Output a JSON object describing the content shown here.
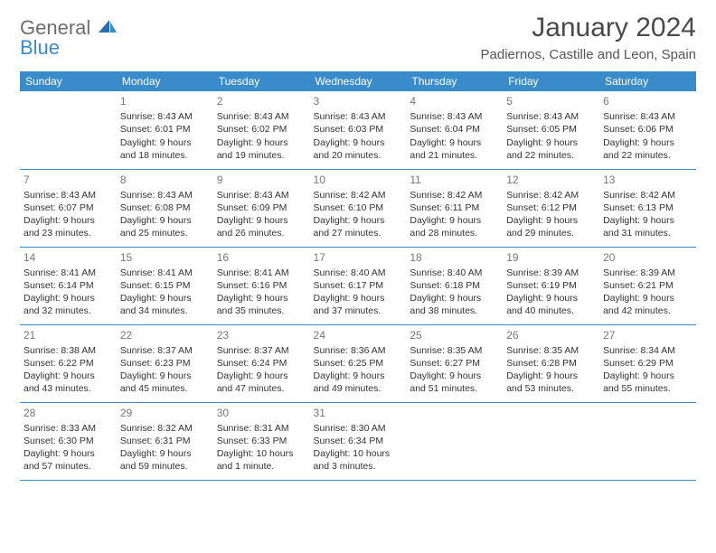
{
  "brand": {
    "general": "General",
    "blue": "Blue"
  },
  "title": "January 2024",
  "location": "Padiernos, Castille and Leon, Spain",
  "colors": {
    "header_bg": "#3a8bc9",
    "header_fg": "#ffffff",
    "rule": "#3a8bc9",
    "text": "#333333",
    "daynum": "#777777",
    "brand_gray": "#6e6e6e",
    "brand_blue": "#3a8bc9",
    "page_bg": "#ffffff"
  },
  "typography": {
    "title_fontsize": 30,
    "location_fontsize": 15,
    "header_fontsize": 12,
    "cell_fontsize": 10.5
  },
  "type": "calendar-table",
  "day_headers": [
    "Sunday",
    "Monday",
    "Tuesday",
    "Wednesday",
    "Thursday",
    "Friday",
    "Saturday"
  ],
  "weeks": [
    [
      null,
      {
        "n": "1",
        "sr": "Sunrise: 8:43 AM",
        "ss": "Sunset: 6:01 PM",
        "dl": "Daylight: 9 hours and 18 minutes."
      },
      {
        "n": "2",
        "sr": "Sunrise: 8:43 AM",
        "ss": "Sunset: 6:02 PM",
        "dl": "Daylight: 9 hours and 19 minutes."
      },
      {
        "n": "3",
        "sr": "Sunrise: 8:43 AM",
        "ss": "Sunset: 6:03 PM",
        "dl": "Daylight: 9 hours and 20 minutes."
      },
      {
        "n": "4",
        "sr": "Sunrise: 8:43 AM",
        "ss": "Sunset: 6:04 PM",
        "dl": "Daylight: 9 hours and 21 minutes."
      },
      {
        "n": "5",
        "sr": "Sunrise: 8:43 AM",
        "ss": "Sunset: 6:05 PM",
        "dl": "Daylight: 9 hours and 22 minutes."
      },
      {
        "n": "6",
        "sr": "Sunrise: 8:43 AM",
        "ss": "Sunset: 6:06 PM",
        "dl": "Daylight: 9 hours and 22 minutes."
      }
    ],
    [
      {
        "n": "7",
        "sr": "Sunrise: 8:43 AM",
        "ss": "Sunset: 6:07 PM",
        "dl": "Daylight: 9 hours and 23 minutes."
      },
      {
        "n": "8",
        "sr": "Sunrise: 8:43 AM",
        "ss": "Sunset: 6:08 PM",
        "dl": "Daylight: 9 hours and 25 minutes."
      },
      {
        "n": "9",
        "sr": "Sunrise: 8:43 AM",
        "ss": "Sunset: 6:09 PM",
        "dl": "Daylight: 9 hours and 26 minutes."
      },
      {
        "n": "10",
        "sr": "Sunrise: 8:42 AM",
        "ss": "Sunset: 6:10 PM",
        "dl": "Daylight: 9 hours and 27 minutes."
      },
      {
        "n": "11",
        "sr": "Sunrise: 8:42 AM",
        "ss": "Sunset: 6:11 PM",
        "dl": "Daylight: 9 hours and 28 minutes."
      },
      {
        "n": "12",
        "sr": "Sunrise: 8:42 AM",
        "ss": "Sunset: 6:12 PM",
        "dl": "Daylight: 9 hours and 29 minutes."
      },
      {
        "n": "13",
        "sr": "Sunrise: 8:42 AM",
        "ss": "Sunset: 6:13 PM",
        "dl": "Daylight: 9 hours and 31 minutes."
      }
    ],
    [
      {
        "n": "14",
        "sr": "Sunrise: 8:41 AM",
        "ss": "Sunset: 6:14 PM",
        "dl": "Daylight: 9 hours and 32 minutes."
      },
      {
        "n": "15",
        "sr": "Sunrise: 8:41 AM",
        "ss": "Sunset: 6:15 PM",
        "dl": "Daylight: 9 hours and 34 minutes."
      },
      {
        "n": "16",
        "sr": "Sunrise: 8:41 AM",
        "ss": "Sunset: 6:16 PM",
        "dl": "Daylight: 9 hours and 35 minutes."
      },
      {
        "n": "17",
        "sr": "Sunrise: 8:40 AM",
        "ss": "Sunset: 6:17 PM",
        "dl": "Daylight: 9 hours and 37 minutes."
      },
      {
        "n": "18",
        "sr": "Sunrise: 8:40 AM",
        "ss": "Sunset: 6:18 PM",
        "dl": "Daylight: 9 hours and 38 minutes."
      },
      {
        "n": "19",
        "sr": "Sunrise: 8:39 AM",
        "ss": "Sunset: 6:19 PM",
        "dl": "Daylight: 9 hours and 40 minutes."
      },
      {
        "n": "20",
        "sr": "Sunrise: 8:39 AM",
        "ss": "Sunset: 6:21 PM",
        "dl": "Daylight: 9 hours and 42 minutes."
      }
    ],
    [
      {
        "n": "21",
        "sr": "Sunrise: 8:38 AM",
        "ss": "Sunset: 6:22 PM",
        "dl": "Daylight: 9 hours and 43 minutes."
      },
      {
        "n": "22",
        "sr": "Sunrise: 8:37 AM",
        "ss": "Sunset: 6:23 PM",
        "dl": "Daylight: 9 hours and 45 minutes."
      },
      {
        "n": "23",
        "sr": "Sunrise: 8:37 AM",
        "ss": "Sunset: 6:24 PM",
        "dl": "Daylight: 9 hours and 47 minutes."
      },
      {
        "n": "24",
        "sr": "Sunrise: 8:36 AM",
        "ss": "Sunset: 6:25 PM",
        "dl": "Daylight: 9 hours and 49 minutes."
      },
      {
        "n": "25",
        "sr": "Sunrise: 8:35 AM",
        "ss": "Sunset: 6:27 PM",
        "dl": "Daylight: 9 hours and 51 minutes."
      },
      {
        "n": "26",
        "sr": "Sunrise: 8:35 AM",
        "ss": "Sunset: 6:28 PM",
        "dl": "Daylight: 9 hours and 53 minutes."
      },
      {
        "n": "27",
        "sr": "Sunrise: 8:34 AM",
        "ss": "Sunset: 6:29 PM",
        "dl": "Daylight: 9 hours and 55 minutes."
      }
    ],
    [
      {
        "n": "28",
        "sr": "Sunrise: 8:33 AM",
        "ss": "Sunset: 6:30 PM",
        "dl": "Daylight: 9 hours and 57 minutes."
      },
      {
        "n": "29",
        "sr": "Sunrise: 8:32 AM",
        "ss": "Sunset: 6:31 PM",
        "dl": "Daylight: 9 hours and 59 minutes."
      },
      {
        "n": "30",
        "sr": "Sunrise: 8:31 AM",
        "ss": "Sunset: 6:33 PM",
        "dl": "Daylight: 10 hours and 1 minute."
      },
      {
        "n": "31",
        "sr": "Sunrise: 8:30 AM",
        "ss": "Sunset: 6:34 PM",
        "dl": "Daylight: 10 hours and 3 minutes."
      },
      null,
      null,
      null
    ]
  ]
}
